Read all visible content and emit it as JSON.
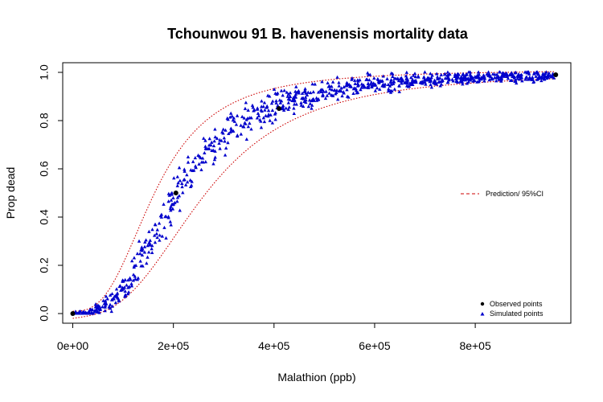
{
  "chart_data": {
    "type": "scatter",
    "title": "Tchounwou 91 B. havenensis mortality data",
    "xlabel": "Malathion (ppb)",
    "ylabel": "Prop dead",
    "xlim": [
      -20000,
      990000
    ],
    "ylim": [
      -0.04,
      1.04
    ],
    "x_ticks": [
      0,
      200000,
      400000,
      600000,
      800000
    ],
    "x_tick_labels": [
      "0e+00",
      "2e+05",
      "4e+05",
      "6e+05",
      "8e+05"
    ],
    "y_ticks": [
      0.0,
      0.2,
      0.4,
      0.6,
      0.8,
      1.0
    ],
    "y_tick_labels": [
      "0.0",
      "0.2",
      "0.4",
      "0.6",
      "0.8",
      "1.0"
    ],
    "grid": false,
    "legend_prediction": {
      "label": "Prediction/ 95%CI",
      "color": "#cc0000",
      "position": "right"
    },
    "legend_points": {
      "position": "bottom-right",
      "entries": [
        {
          "label": "Observed points",
          "marker": "circle",
          "color": "#000000"
        },
        {
          "label": "Simulated points",
          "marker": "triangle",
          "color": "#0000cc"
        }
      ]
    },
    "observed_points": {
      "name": "Observed points",
      "x": [
        0,
        205000,
        410000,
        960000
      ],
      "y": [
        0.0,
        0.5,
        0.85,
        0.99
      ]
    },
    "simulated_points": {
      "name": "Simulated points",
      "x_range": [
        0,
        960000
      ],
      "count": 900
    },
    "prediction_curve": {
      "ec50": 210000,
      "slope": 2.8,
      "upper_ci_ec50": 165000,
      "lower_ci_ec50": 265000
    },
    "colors": {
      "observed": "#000000",
      "simulated": "#0000cc",
      "ci": "#cc0000"
    }
  }
}
